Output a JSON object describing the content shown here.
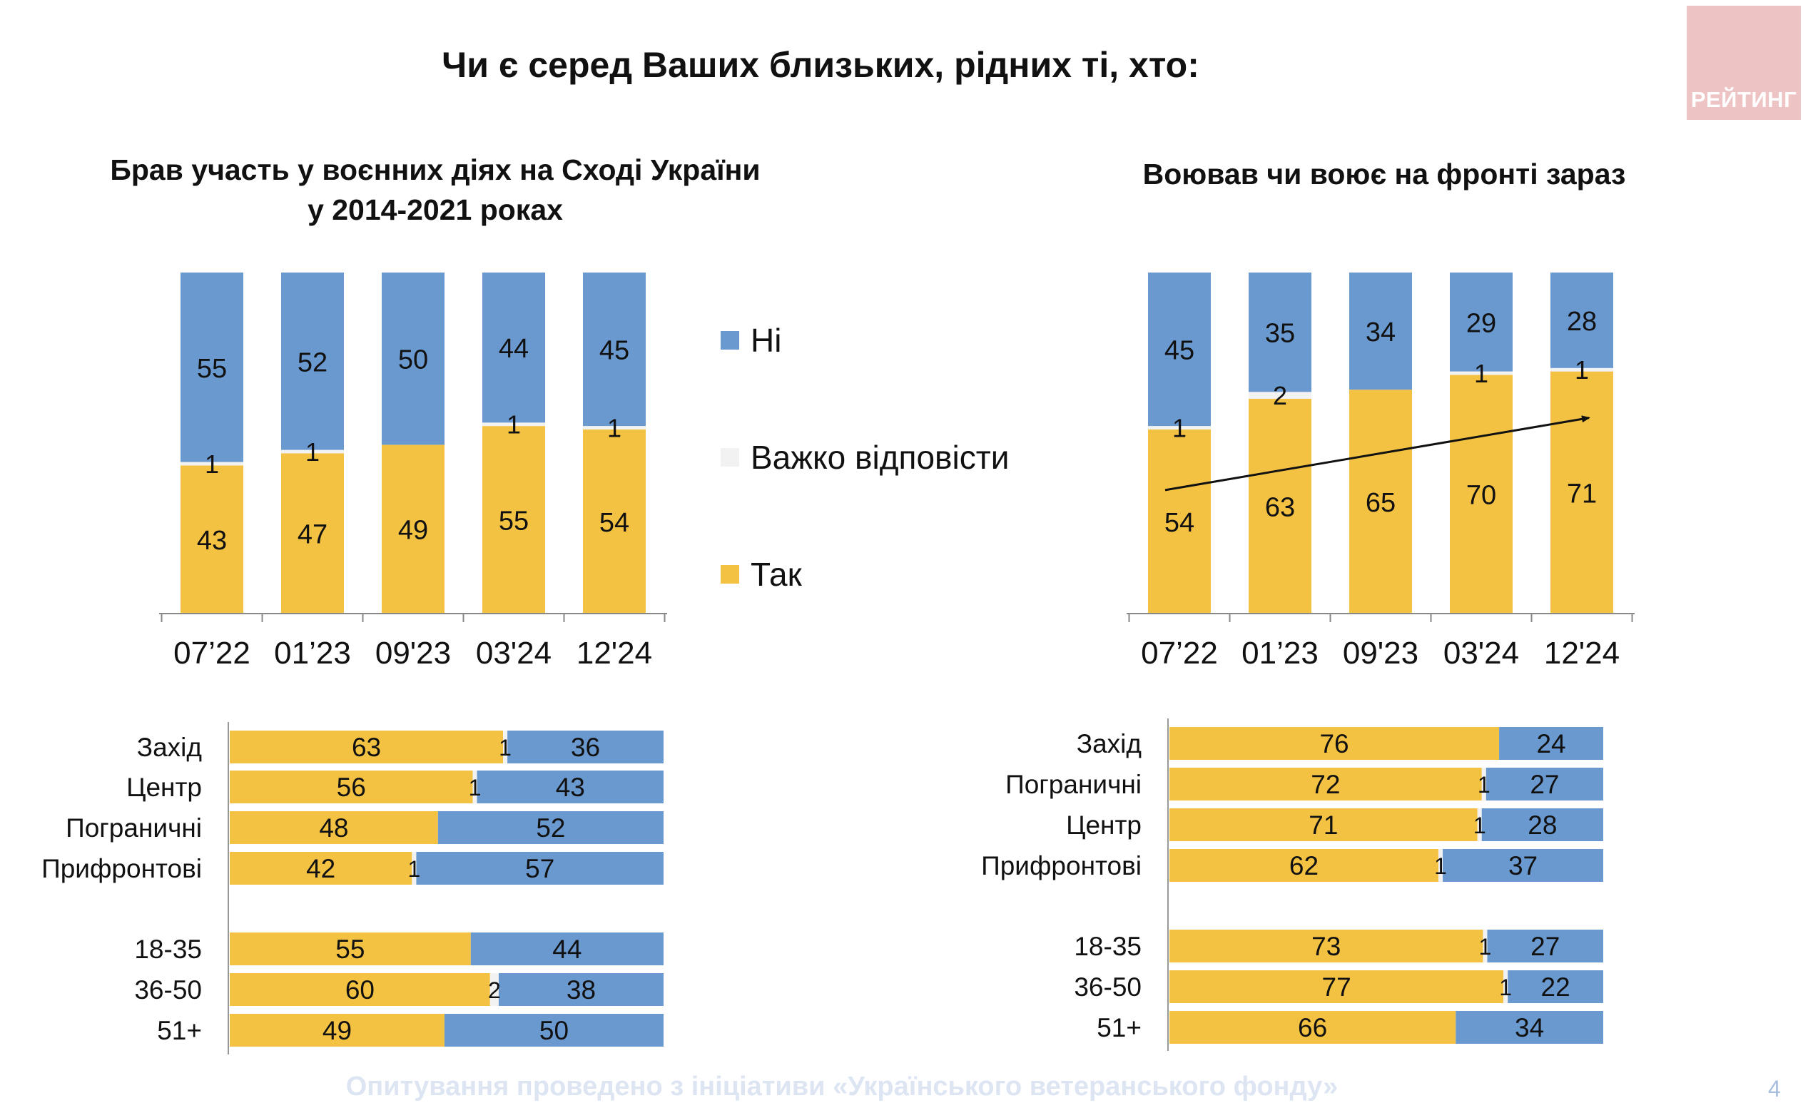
{
  "title": "Чи є серед Ваших близьких, рідних ті, хто:",
  "logo": "РЕЙТИНГ",
  "footer": "Опитування проведено з ініціативи «Українського ветеранського фонду»",
  "page_number": "4",
  "legend": [
    {
      "label": "Ні",
      "color": "#6a99d0"
    },
    {
      "label": "Важко відповісти",
      "color": "#f2f2f2"
    },
    {
      "label": "Так",
      "color": "#f4c242"
    }
  ],
  "colors": {
    "yes": "#f4c242",
    "hard": "#f2f2f2",
    "no": "#6a99d0"
  },
  "chart_data": [
    {
      "type": "bar",
      "stacked": true,
      "title": "Брав участь у воєнних діях на Сході України у 2014-2021 роках",
      "title_lines": [
        "Брав участь у воєнних діях на Сході України",
        "у 2014-2021 роках"
      ],
      "categories": [
        "07’22",
        "01’23",
        "09'23",
        "03'24",
        "12'24"
      ],
      "series": [
        {
          "name": "Так",
          "values": [
            43,
            47,
            49,
            55,
            54
          ]
        },
        {
          "name": "Важко відповісти",
          "values": [
            1,
            1,
            0,
            1,
            1
          ]
        },
        {
          "name": "Ні",
          "values": [
            55,
            52,
            50,
            44,
            45
          ]
        }
      ],
      "hard_labels": [
        "1",
        "1",
        "",
        "1",
        "1"
      ],
      "ylim": [
        0,
        100
      ]
    },
    {
      "type": "bar",
      "stacked": true,
      "title": "Воював чи воює на фронті зараз",
      "title_lines": [
        "Воював чи воює на фронті зараз"
      ],
      "categories": [
        "07’22",
        "01’23",
        "09'23",
        "03'24",
        "12'24"
      ],
      "series": [
        {
          "name": "Так",
          "values": [
            54,
            63,
            65,
            70,
            71
          ]
        },
        {
          "name": "Важко відповісти",
          "values": [
            1,
            2,
            0,
            1,
            1
          ]
        },
        {
          "name": "Ні",
          "values": [
            45,
            35,
            34,
            29,
            28
          ]
        }
      ],
      "hard_labels": [
        "1",
        "2",
        "",
        "1",
        "1"
      ],
      "trend_arrow": true,
      "ylim": [
        0,
        100
      ]
    },
    {
      "type": "bar",
      "orientation": "horizontal",
      "stacked": true,
      "rows": [
        {
          "label": "Захід",
          "yes": 63,
          "hard": 1,
          "no": 36,
          "hard_label": "1"
        },
        {
          "label": "Центр",
          "yes": 56,
          "hard": 1,
          "no": 43,
          "hard_label": "1"
        },
        {
          "label": "Пограничні",
          "yes": 48,
          "hard": 0,
          "no": 52,
          "hard_label": ""
        },
        {
          "label": "Прифронтові",
          "yes": 42,
          "hard": 1,
          "no": 57,
          "hard_label": "1"
        },
        {
          "label": "18-35",
          "yes": 55,
          "hard": 0,
          "no": 44,
          "hard_label": ""
        },
        {
          "label": "36-50",
          "yes": 60,
          "hard": 2,
          "no": 38,
          "hard_label": "2"
        },
        {
          "label": "51+",
          "yes": 49,
          "hard": 0,
          "no": 50,
          "hard_label": ""
        }
      ]
    },
    {
      "type": "bar",
      "orientation": "horizontal",
      "stacked": true,
      "rows": [
        {
          "label": "Захід",
          "yes": 76,
          "hard": 0,
          "no": 24,
          "hard_label": ""
        },
        {
          "label": "Пограничні",
          "yes": 72,
          "hard": 1,
          "no": 27,
          "hard_label": "1"
        },
        {
          "label": "Центр",
          "yes": 71,
          "hard": 1,
          "no": 28,
          "hard_label": "1"
        },
        {
          "label": "Прифронтові",
          "yes": 62,
          "hard": 1,
          "no": 37,
          "hard_label": "1"
        },
        {
          "label": "18-35",
          "yes": 73,
          "hard": 1,
          "no": 27,
          "hard_label": "1"
        },
        {
          "label": "36-50",
          "yes": 77,
          "hard": 1,
          "no": 22,
          "hard_label": "1"
        },
        {
          "label": "51+",
          "yes": 66,
          "hard": 0,
          "no": 34,
          "hard_label": ""
        }
      ]
    }
  ]
}
